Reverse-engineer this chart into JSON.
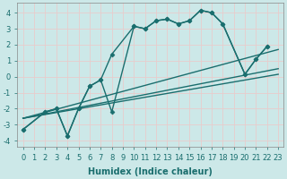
{
  "background_color": "#cce8e8",
  "grid_color": "#e8c8c8",
  "line_color": "#1a6e6e",
  "line_width": 1.0,
  "marker": "D",
  "marker_size": 2.5,
  "xlabel": "Humidex (Indice chaleur)",
  "xlabel_fontsize": 7,
  "tick_fontsize": 6,
  "xlim": [
    -0.5,
    23.5
  ],
  "ylim": [
    -4.4,
    4.6
  ],
  "xticks": [
    0,
    1,
    2,
    3,
    4,
    5,
    6,
    7,
    8,
    9,
    10,
    11,
    12,
    13,
    14,
    15,
    16,
    17,
    18,
    19,
    20,
    21,
    22,
    23
  ],
  "yticks": [
    -4,
    -3,
    -2,
    -1,
    0,
    1,
    2,
    3,
    4
  ],
  "series": [
    {
      "x": [
        0,
        2,
        3,
        4,
        5,
        6,
        7,
        8,
        10,
        11,
        12,
        13,
        14,
        15,
        16,
        17,
        18,
        20,
        21,
        22
      ],
      "y": [
        -3.3,
        -2.2,
        -2.0,
        -3.7,
        -2.0,
        -0.6,
        -0.2,
        1.4,
        3.15,
        3.0,
        3.5,
        3.6,
        3.3,
        3.5,
        4.15,
        4.0,
        3.3,
        0.15,
        1.1,
        1.9
      ]
    },
    {
      "x": [
        0,
        2,
        3,
        4,
        5,
        6,
        7,
        8,
        10,
        11,
        12,
        13,
        14,
        15,
        16,
        17,
        18,
        20,
        21,
        22
      ],
      "y": [
        -3.3,
        -2.2,
        -2.0,
        -3.7,
        -2.0,
        -0.6,
        -0.2,
        -2.2,
        3.15,
        3.0,
        3.5,
        3.6,
        3.3,
        3.5,
        4.15,
        4.0,
        3.3,
        0.15,
        1.1,
        1.9
      ]
    },
    {
      "x": [
        0,
        23
      ],
      "y": [
        -2.6,
        0.15
      ]
    },
    {
      "x": [
        0,
        23
      ],
      "y": [
        -2.6,
        0.5
      ]
    },
    {
      "x": [
        0,
        23
      ],
      "y": [
        -2.6,
        1.7
      ]
    }
  ]
}
